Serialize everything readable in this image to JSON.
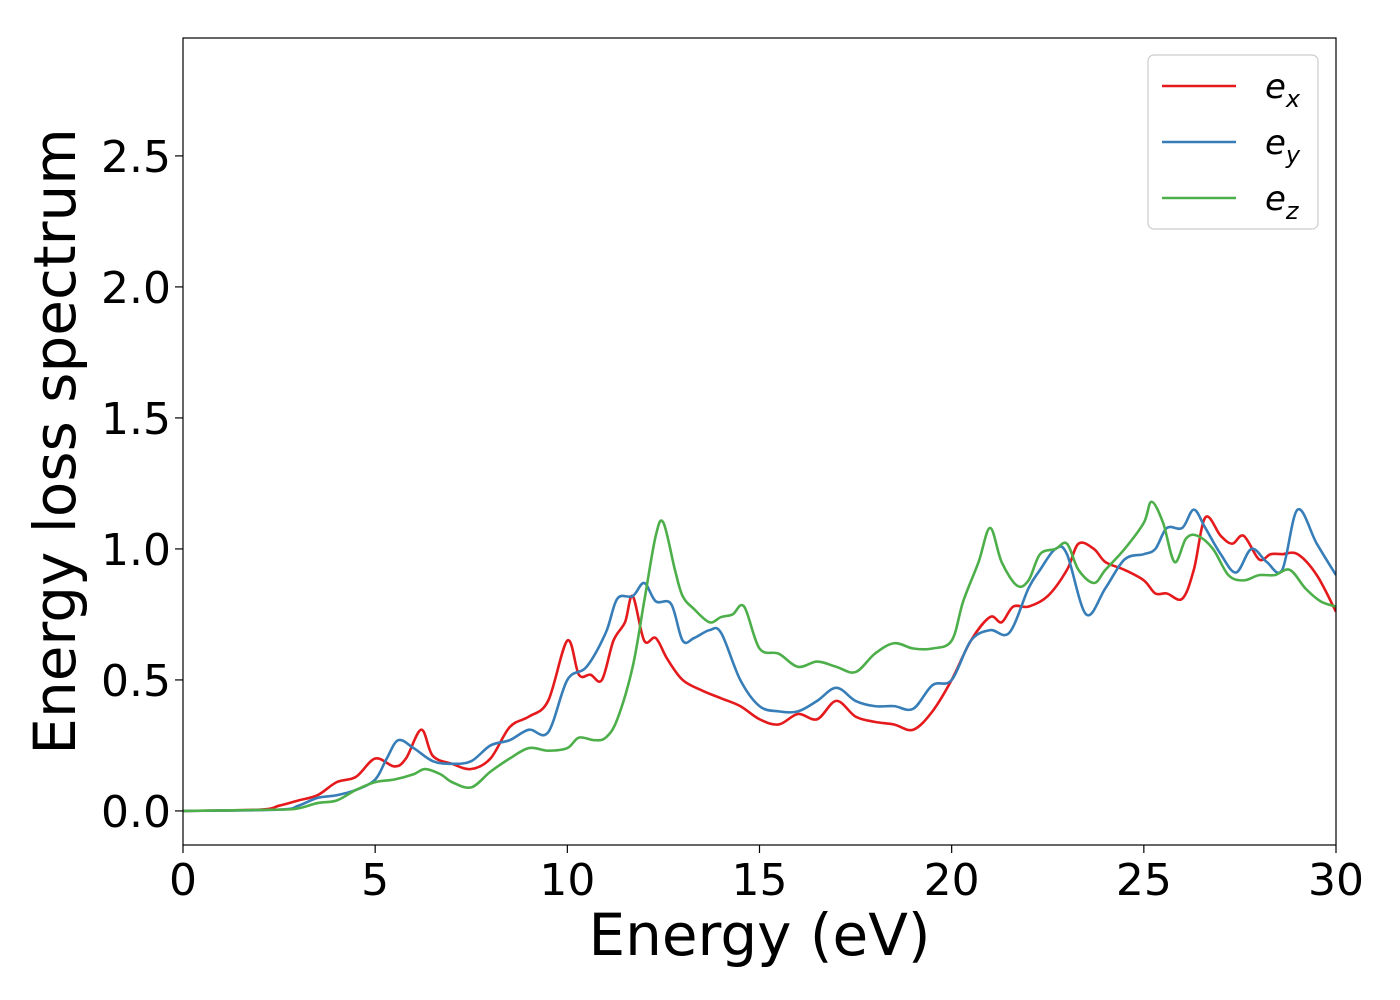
{
  "chart_data": {
    "type": "line",
    "title": "",
    "xlabel": "Energy (eV)",
    "ylabel": "Energy loss spectrum",
    "xlim": [
      0,
      30
    ],
    "ylim": [
      -0.13,
      2.95
    ],
    "x_ticks": [
      0,
      5,
      10,
      15,
      20,
      25,
      30
    ],
    "y_ticks": [
      0.0,
      0.5,
      1.0,
      1.5,
      2.0,
      2.5
    ],
    "x_tick_labels": [
      "0",
      "5",
      "10",
      "15",
      "20",
      "25",
      "30"
    ],
    "y_tick_labels": [
      "0.0",
      "0.5",
      "1.0",
      "1.5",
      "2.0",
      "2.5"
    ],
    "grid": false,
    "legend_position": "top-right",
    "series": [
      {
        "name": "e_x",
        "legend_base": "e",
        "legend_sub": "x",
        "color": "#e41a1c",
        "x": [
          0,
          2,
          2.5,
          3,
          3.5,
          4,
          4.5,
          5,
          5.5,
          5.8,
          6.2,
          6.5,
          7,
          7.5,
          8,
          8.5,
          9,
          9.5,
          10,
          10.3,
          10.6,
          10.9,
          11.2,
          11.5,
          11.7,
          12,
          12.3,
          12.6,
          13,
          13.5,
          14,
          14.5,
          15,
          15.5,
          16,
          16.5,
          17,
          17.5,
          18,
          18.5,
          19,
          19.5,
          20,
          20.5,
          21,
          21.3,
          21.6,
          22,
          22.5,
          23,
          23.3,
          23.7,
          24,
          24.5,
          25,
          25.3,
          25.6,
          26,
          26.3,
          26.6,
          27,
          27.3,
          27.6,
          28,
          28.3,
          28.6,
          29,
          29.5,
          30
        ],
        "y": [
          0,
          0.005,
          0.02,
          0.04,
          0.06,
          0.11,
          0.13,
          0.2,
          0.17,
          0.2,
          0.31,
          0.21,
          0.18,
          0.16,
          0.2,
          0.32,
          0.36,
          0.42,
          0.65,
          0.52,
          0.52,
          0.5,
          0.65,
          0.72,
          0.82,
          0.65,
          0.66,
          0.58,
          0.5,
          0.46,
          0.43,
          0.4,
          0.35,
          0.33,
          0.37,
          0.35,
          0.42,
          0.36,
          0.34,
          0.33,
          0.31,
          0.38,
          0.5,
          0.65,
          0.74,
          0.72,
          0.78,
          0.78,
          0.82,
          0.92,
          1.02,
          1.0,
          0.95,
          0.92,
          0.88,
          0.83,
          0.83,
          0.81,
          0.92,
          1.12,
          1.05,
          1.02,
          1.05,
          0.96,
          0.98,
          0.98,
          0.98,
          0.9,
          0.76
        ]
      },
      {
        "name": "e_y",
        "legend_base": "e",
        "legend_sub": "y",
        "color": "#377eb8",
        "x": [
          0,
          2.5,
          3,
          3.5,
          4,
          4.5,
          5,
          5.3,
          5.6,
          6,
          6.5,
          7,
          7.5,
          8,
          8.5,
          9,
          9.5,
          10,
          10.5,
          11,
          11.3,
          11.7,
          12,
          12.3,
          12.7,
          13,
          13.3,
          13.7,
          14,
          14.5,
          15,
          15.5,
          16,
          16.5,
          17,
          17.5,
          18,
          18.5,
          19,
          19.5,
          20,
          20.5,
          21,
          21.5,
          22,
          22.3,
          22.7,
          23,
          23.5,
          24,
          24.5,
          25,
          25.3,
          25.6,
          26,
          26.3,
          26.6,
          27,
          27.4,
          27.8,
          28.2,
          28.6,
          29,
          29.5,
          30
        ],
        "y": [
          0,
          0.005,
          0.02,
          0.05,
          0.06,
          0.08,
          0.12,
          0.2,
          0.27,
          0.24,
          0.19,
          0.18,
          0.19,
          0.25,
          0.27,
          0.31,
          0.3,
          0.5,
          0.55,
          0.68,
          0.81,
          0.82,
          0.87,
          0.8,
          0.79,
          0.65,
          0.66,
          0.69,
          0.68,
          0.5,
          0.4,
          0.38,
          0.38,
          0.42,
          0.47,
          0.42,
          0.4,
          0.4,
          0.39,
          0.48,
          0.5,
          0.65,
          0.69,
          0.68,
          0.85,
          0.92,
          1.0,
          0.98,
          0.75,
          0.85,
          0.96,
          0.98,
          1.0,
          1.08,
          1.08,
          1.15,
          1.08,
          0.98,
          0.91,
          1.0,
          0.95,
          0.92,
          1.15,
          1.02,
          0.9
        ]
      },
      {
        "name": "e_z",
        "legend_base": "e",
        "legend_sub": "z",
        "color": "#4daf4a",
        "x": [
          0,
          2.5,
          3,
          3.5,
          4,
          4.5,
          5,
          5.5,
          6,
          6.3,
          6.7,
          7,
          7.5,
          8,
          8.5,
          9,
          9.5,
          10,
          10.3,
          10.7,
          11,
          11.3,
          11.7,
          12,
          12.3,
          12.5,
          12.8,
          13,
          13.3,
          13.7,
          14,
          14.3,
          14.6,
          15,
          15.5,
          16,
          16.5,
          17,
          17.5,
          18,
          18.5,
          19,
          19.5,
          20,
          20.3,
          20.7,
          21,
          21.3,
          21.7,
          22,
          22.3,
          22.7,
          23,
          23.3,
          23.7,
          24,
          24.5,
          25,
          25.2,
          25.5,
          25.8,
          26.1,
          26.4,
          26.8,
          27.2,
          27.6,
          28,
          28.4,
          28.8,
          29.2,
          29.6,
          30
        ],
        "y": [
          0,
          0.005,
          0.01,
          0.03,
          0.04,
          0.08,
          0.11,
          0.12,
          0.14,
          0.16,
          0.14,
          0.11,
          0.09,
          0.15,
          0.2,
          0.24,
          0.23,
          0.24,
          0.28,
          0.27,
          0.28,
          0.35,
          0.55,
          0.8,
          1.05,
          1.1,
          0.92,
          0.82,
          0.77,
          0.72,
          0.74,
          0.75,
          0.78,
          0.62,
          0.6,
          0.55,
          0.57,
          0.55,
          0.53,
          0.6,
          0.64,
          0.62,
          0.62,
          0.65,
          0.8,
          0.95,
          1.08,
          0.95,
          0.86,
          0.88,
          0.98,
          1.0,
          1.02,
          0.92,
          0.87,
          0.92,
          1.0,
          1.1,
          1.18,
          1.1,
          0.95,
          1.04,
          1.05,
          1.0,
          0.9,
          0.88,
          0.9,
          0.9,
          0.92,
          0.85,
          0.8,
          0.78
        ]
      }
    ]
  }
}
